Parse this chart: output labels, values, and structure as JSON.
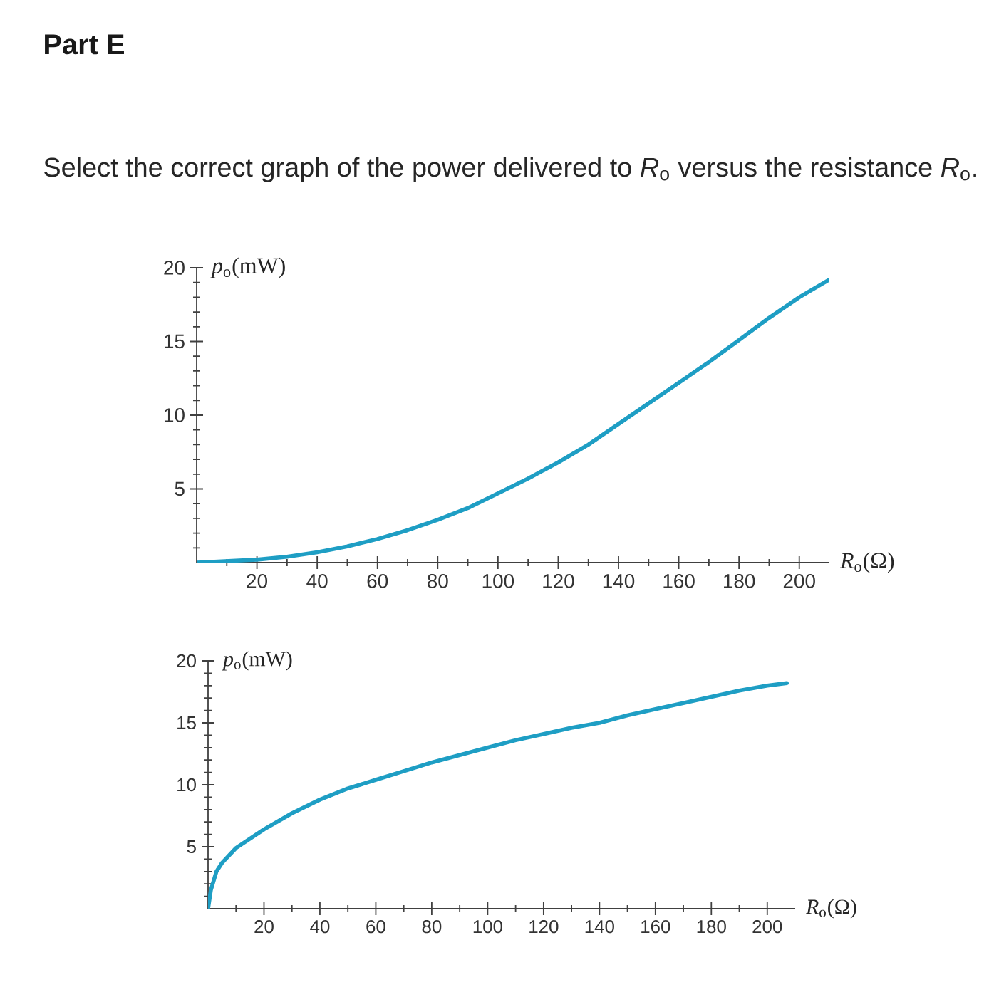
{
  "chart_data": [
    {
      "type": "line",
      "title": "Part E",
      "subtitle": "Select the correct graph of the power delivered to *R*$_{o}$ versus the resistance *R*$_{o}$.",
      "xlabel": "*R*$_{o}$(Ω)",
      "ylabel": "*p*$_{o}$(mW)",
      "color": "#1e9ec4",
      "x": [
        0,
        10,
        20,
        30,
        40,
        50,
        60,
        70,
        80,
        90,
        100,
        110,
        120,
        130,
        140,
        150,
        160,
        170,
        180,
        190,
        200,
        210
      ],
      "values": [
        0,
        0.1,
        0.2,
        0.4,
        0.7,
        1.1,
        1.6,
        2.2,
        2.9,
        3.7,
        4.7,
        5.7,
        6.8,
        8.0,
        9.4,
        10.8,
        12.2,
        13.6,
        15.1,
        16.6,
        18.0,
        19.2
      ],
      "xlim": [
        0,
        210
      ],
      "ylim": [
        0,
        20
      ],
      "xticks": [
        {
          "value": 10,
          "label": null
        },
        20,
        {
          "value": 30,
          "label": null
        },
        40,
        {
          "value": 50,
          "label": null
        },
        60,
        {
          "value": 70,
          "label": null
        },
        80,
        {
          "value": 90,
          "label": null
        },
        100,
        {
          "value": 110,
          "label": null
        },
        120,
        {
          "value": 130,
          "label": null
        },
        140,
        {
          "value": 150,
          "label": null
        },
        160,
        {
          "value": 170,
          "label": null
        },
        180,
        {
          "value": 190,
          "label": null
        },
        200
      ],
      "yticks": [
        {
          "value": 1,
          "label": null
        },
        {
          "value": 2,
          "label": null
        },
        {
          "value": 3,
          "label": null
        },
        {
          "value": 4,
          "label": null
        },
        5,
        {
          "value": 6,
          "label": null
        },
        {
          "value": 7,
          "label": null
        },
        {
          "value": 8,
          "label": null
        },
        {
          "value": 9,
          "label": null
        },
        10,
        {
          "value": 11,
          "label": null
        },
        {
          "value": 12,
          "label": null
        },
        {
          "value": 13,
          "label": null
        },
        {
          "value": 14,
          "label": null
        },
        15,
        {
          "value": 16,
          "label": null
        },
        {
          "value": 17,
          "label": null
        },
        {
          "value": 18,
          "label": null
        },
        {
          "value": 19,
          "label": null
        },
        20
      ]
    },
    {
      "type": "line",
      "xlabel": "*R*$_{o}$(Ω)",
      "ylabel": "*p*$_{o}$(mW)",
      "color": "#1e9ec4",
      "x": [
        0,
        1,
        3,
        5,
        10,
        20,
        30,
        40,
        50,
        60,
        70,
        80,
        90,
        100,
        110,
        120,
        130,
        140,
        150,
        160,
        170,
        180,
        190,
        200,
        207
      ],
      "values": [
        0,
        1.5,
        3.0,
        3.7,
        4.9,
        6.4,
        7.7,
        8.8,
        9.7,
        10.4,
        11.1,
        11.8,
        12.4,
        13.0,
        13.6,
        14.1,
        14.6,
        15.0,
        15.6,
        16.1,
        16.6,
        17.1,
        17.6,
        18.0,
        18.2
      ],
      "xlim": [
        0,
        210
      ],
      "ylim": [
        0,
        20
      ],
      "xticks": [
        {
          "value": 10,
          "label": null
        },
        20,
        {
          "value": 30,
          "label": null
        },
        40,
        {
          "value": 50,
          "label": null
        },
        60,
        {
          "value": 70,
          "label": null
        },
        80,
        {
          "value": 90,
          "label": null
        },
        100,
        {
          "value": 110,
          "label": null
        },
        120,
        {
          "value": 130,
          "label": null
        },
        140,
        {
          "value": 150,
          "label": null
        },
        160,
        {
          "value": 170,
          "label": null
        },
        180,
        {
          "value": 190,
          "label": null
        },
        200
      ],
      "yticks": [
        {
          "value": 1,
          "label": null
        },
        {
          "value": 2,
          "label": null
        },
        {
          "value": 3,
          "label": null
        },
        {
          "value": 4,
          "label": null
        },
        5,
        {
          "value": 6,
          "label": null
        },
        {
          "value": 7,
          "label": null
        },
        {
          "value": 8,
          "label": null
        },
        {
          "value": 9,
          "label": null
        },
        10,
        {
          "value": 11,
          "label": null
        },
        {
          "value": 12,
          "label": null
        },
        {
          "value": 13,
          "label": null
        },
        {
          "value": 14,
          "label": null
        },
        15,
        {
          "value": 16,
          "label": null
        },
        {
          "value": 17,
          "label": null
        },
        {
          "value": 18,
          "label": null
        },
        {
          "value": 19,
          "label": null
        },
        20
      ]
    }
  ]
}
